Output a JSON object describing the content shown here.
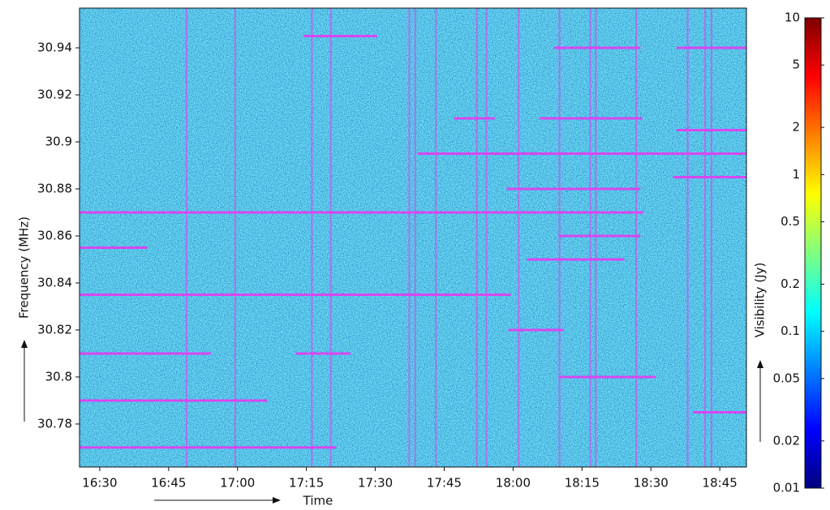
{
  "chart_data": {
    "type": "spectrogram",
    "x_label": "Time",
    "y_label": "Frequency (MHz)",
    "colorbar_label": "Visibility (Jy)",
    "xlim": [
      985.6,
      1130.8
    ],
    "xticks": [
      {
        "value": 990,
        "label": "16:30"
      },
      {
        "value": 1005,
        "label": "16:45"
      },
      {
        "value": 1020,
        "label": "17:00"
      },
      {
        "value": 1035,
        "label": "17:15"
      },
      {
        "value": 1050,
        "label": "17:30"
      },
      {
        "value": 1065,
        "label": "17:45"
      },
      {
        "value": 1080,
        "label": "18:00"
      },
      {
        "value": 1095,
        "label": "18:15"
      },
      {
        "value": 1110,
        "label": "18:30"
      },
      {
        "value": 1125,
        "label": "18:45"
      }
    ],
    "ylim": [
      30.7617,
      30.9569
    ],
    "yticks": [
      30.78,
      30.8,
      30.82,
      30.84,
      30.86,
      30.88,
      30.9,
      30.92,
      30.94
    ],
    "colormap": "jet",
    "color_scale": "log",
    "clim": [
      0.01,
      10
    ],
    "cticks": [
      0.01,
      0.02,
      0.05,
      0.1,
      0.2,
      0.5,
      1,
      2,
      5,
      10
    ],
    "flag_color": "#d946ef",
    "flagged_channels": [
      {
        "frequency": 30.87,
        "start": 985.6,
        "end": 1108.4
      },
      {
        "frequency": 30.835,
        "start": 985.6,
        "end": 1079.5
      },
      {
        "frequency": 30.895,
        "start": 1059.2,
        "end": 1130.8
      },
      {
        "frequency": 30.81,
        "start": 985.6,
        "end": 1014.2
      },
      {
        "frequency": 30.81,
        "start": 1032.7,
        "end": 1044.6
      },
      {
        "frequency": 30.79,
        "start": 985.6,
        "end": 1026.5
      },
      {
        "frequency": 30.77,
        "start": 985.6,
        "end": 1041.5
      },
      {
        "frequency": 30.855,
        "start": 985.6,
        "end": 1000.4
      },
      {
        "frequency": 30.785,
        "start": 1119.2,
        "end": 1130.8
      },
      {
        "frequency": 30.945,
        "start": 1034.5,
        "end": 1050.4
      },
      {
        "frequency": 30.91,
        "start": 1067.1,
        "end": 1076.0
      },
      {
        "frequency": 30.91,
        "start": 1085.7,
        "end": 1108.1
      },
      {
        "frequency": 30.88,
        "start": 1078.6,
        "end": 1107.7
      },
      {
        "frequency": 30.85,
        "start": 1083.0,
        "end": 1104.2
      },
      {
        "frequency": 30.86,
        "start": 1089.9,
        "end": 1107.7
      },
      {
        "frequency": 30.82,
        "start": 1079.0,
        "end": 1091.0
      },
      {
        "frequency": 30.8,
        "start": 1089.9,
        "end": 1111.1
      },
      {
        "frequency": 30.905,
        "start": 1115.6,
        "end": 1130.8
      },
      {
        "frequency": 30.885,
        "start": 1114.8,
        "end": 1130.8
      },
      {
        "frequency": 30.94,
        "start": 1088.8,
        "end": 1107.7
      },
      {
        "frequency": 30.94,
        "start": 1115.6,
        "end": 1130.8
      }
    ],
    "flagged_times": [
      1008.9,
      1019.5,
      1036.2,
      1040.3,
      1057.4,
      1058.7,
      1063.2,
      1072.1,
      1074.2,
      1081.2,
      1090.1,
      1096.8,
      1098.0,
      1106.8,
      1118.0,
      1121.8,
      1123.2
    ]
  }
}
